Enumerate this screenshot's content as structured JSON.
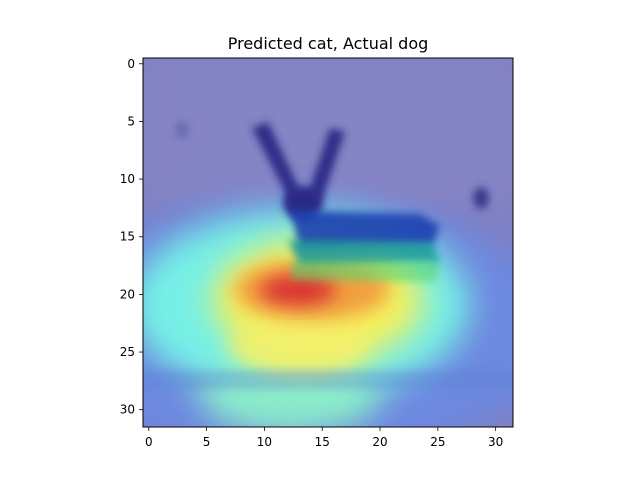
{
  "figure": {
    "title": "Predicted cat, Actual dog"
  },
  "axes": {
    "x_range": [
      -0.5,
      31.5
    ],
    "y_range": [
      -0.5,
      31.5
    ],
    "y_inverted": true,
    "x_ticks": [
      0,
      5,
      10,
      15,
      20,
      25,
      30
    ],
    "y_ticks": [
      0,
      5,
      10,
      15,
      20,
      25,
      30
    ],
    "x_tick_labels": [
      "0",
      "5",
      "10",
      "15",
      "20",
      "25",
      "30"
    ],
    "y_tick_labels": [
      "0",
      "5",
      "10",
      "15",
      "20",
      "25",
      "30"
    ]
  },
  "image": {
    "content": "blurry 32x32 image of a dark rabbit/dog-like silhouette with a jet-colormap heat overlay",
    "heat_peak": [
      20,
      13
    ],
    "colormap": "jet",
    "background_color": "#7f7fc3"
  }
}
